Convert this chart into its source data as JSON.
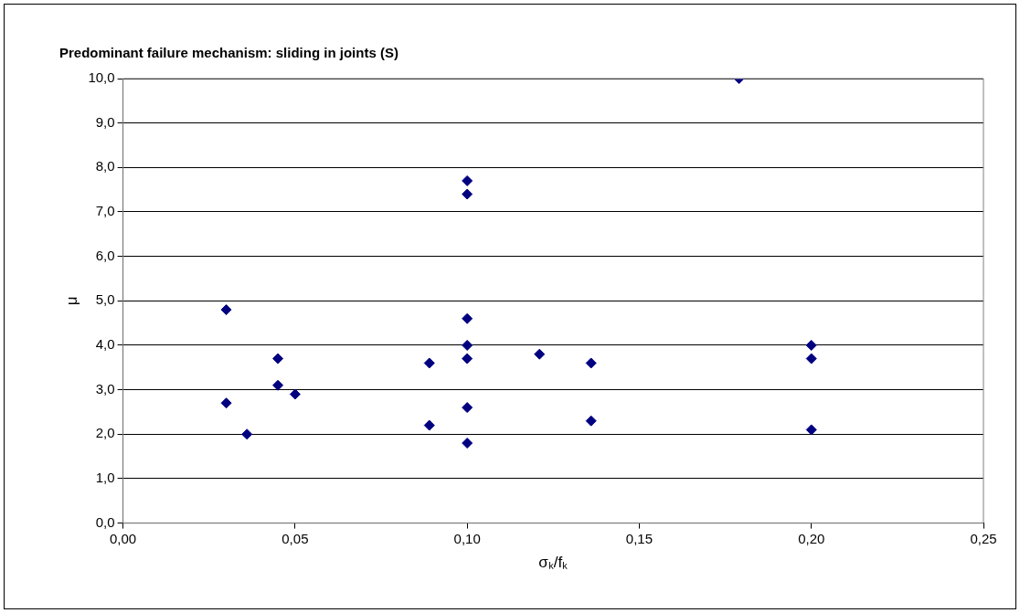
{
  "chart_data": {
    "type": "scatter",
    "title": "Predominant failure mechanism: sliding in joints (S)",
    "xlabel": "σₖ/fₖ",
    "ylabel": "μ",
    "series": [
      {
        "color": "#000080",
        "x": [
          0.03,
          0.03,
          0.036,
          0.045,
          0.045,
          0.05,
          0.089,
          0.089,
          0.1,
          0.1,
          0.1,
          0.1,
          0.1,
          0.1,
          0.1,
          0.121,
          0.136,
          0.136,
          0.179,
          0.2,
          0.2,
          0.2
        ],
        "values": [
          4.8,
          2.7,
          2.0,
          3.7,
          3.1,
          2.9,
          3.6,
          2.2,
          7.7,
          7.4,
          4.6,
          4.0,
          3.7,
          2.6,
          1.8,
          3.8,
          3.6,
          2.3,
          10.0,
          4.0,
          3.7,
          2.1
        ]
      }
    ],
    "xlim": [
      0,
      0.25
    ],
    "xticks": [
      {
        "value": 0,
        "label": "0,00"
      },
      {
        "value": 0.05,
        "label": "0,05"
      },
      {
        "value": 0.1,
        "label": "0,10"
      },
      {
        "value": 0.15,
        "label": "0,15"
      },
      {
        "value": 0.2,
        "label": "0,20"
      },
      {
        "value": 0.25,
        "label": "0,25"
      }
    ],
    "ylim": [
      0,
      10
    ],
    "yticks": [
      {
        "value": 0,
        "label": "0,0"
      },
      {
        "value": 1,
        "label": "1,0"
      },
      {
        "value": 2,
        "label": "2,0"
      },
      {
        "value": 3,
        "label": "3,0"
      },
      {
        "value": 4,
        "label": "4,0"
      },
      {
        "value": 5,
        "label": "5,0"
      },
      {
        "value": 6,
        "label": "6,0"
      },
      {
        "value": 7,
        "label": "7,0"
      },
      {
        "value": 8,
        "label": "8,0"
      },
      {
        "value": 9,
        "label": "9,0"
      },
      {
        "value": 10,
        "label": "10,0"
      }
    ],
    "grid": "y",
    "legend": false,
    "marker": "diamond"
  }
}
